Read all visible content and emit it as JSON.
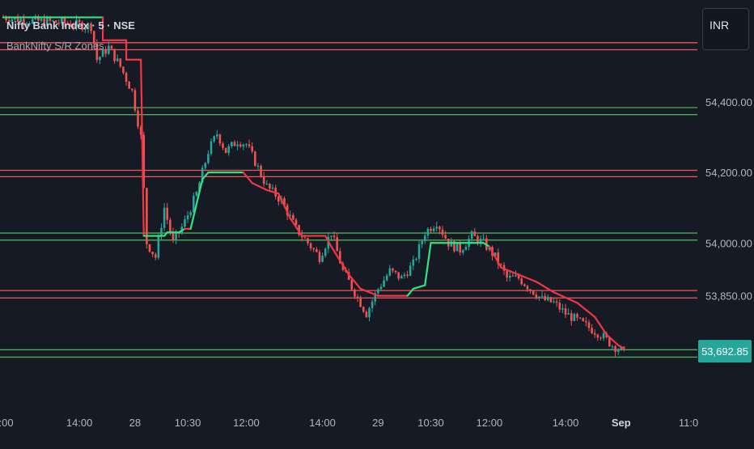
{
  "legend": {
    "symbol_title": "Nifty Bank Index · 5 · NSE",
    "indicator_name": "BankNifty S/R Zones"
  },
  "currency_button": "INR",
  "chart_data": {
    "type": "candlestick",
    "ylim": [
      53560,
      54680
    ],
    "y_ticks": [
      {
        "value": 54400,
        "label": "54,400.00"
      },
      {
        "value": 54200,
        "label": "54,200.00"
      },
      {
        "value": 54000,
        "label": "54,000.00"
      },
      {
        "value": 53850,
        "label": "53,850.00"
      }
    ],
    "x_ticks": [
      {
        "index": 0,
        "label": "2:00"
      },
      {
        "index": 26,
        "label": "14:00"
      },
      {
        "index": 45,
        "label": "28"
      },
      {
        "index": 63,
        "label": "10:30"
      },
      {
        "index": 83,
        "label": "12:00"
      },
      {
        "index": 109,
        "label": "14:00"
      },
      {
        "index": 128,
        "label": "29"
      },
      {
        "index": 146,
        "label": "10:30"
      },
      {
        "index": 166,
        "label": "12:00"
      },
      {
        "index": 192,
        "label": "14:00"
      },
      {
        "index": 211,
        "label": "Sep"
      },
      {
        "index": 234,
        "label": "11:0"
      }
    ],
    "sr_levels": [
      {
        "value": 54568,
        "kind": "resistance"
      },
      {
        "value": 54548,
        "kind": "resistance"
      },
      {
        "value": 54384,
        "kind": "support"
      },
      {
        "value": 54364,
        "kind": "support"
      },
      {
        "value": 54206,
        "kind": "resistance"
      },
      {
        "value": 54188,
        "kind": "resistance"
      },
      {
        "value": 54028,
        "kind": "support"
      },
      {
        "value": 54008,
        "kind": "support"
      },
      {
        "value": 53865,
        "kind": "resistance"
      },
      {
        "value": 53844,
        "kind": "resistance"
      },
      {
        "value": 53697,
        "kind": "support"
      },
      {
        "value": 53676,
        "kind": "support"
      }
    ],
    "last_price": {
      "value": 53692.85,
      "label": "53,692.85"
    },
    "price_path": [
      [
        0,
        54640
      ],
      [
        10,
        54630
      ],
      [
        20,
        54625
      ],
      [
        30,
        54615
      ],
      [
        32,
        54520
      ],
      [
        36,
        54555
      ],
      [
        40,
        54500
      ],
      [
        44,
        54430
      ],
      [
        47,
        54300
      ],
      [
        49,
        54000
      ],
      [
        52,
        53960
      ],
      [
        55,
        54100
      ],
      [
        58,
        54000
      ],
      [
        62,
        54060
      ],
      [
        66,
        54140
      ],
      [
        70,
        54260
      ],
      [
        73,
        54310
      ],
      [
        76,
        54260
      ],
      [
        80,
        54290
      ],
      [
        83,
        54280
      ],
      [
        86,
        54230
      ],
      [
        90,
        54160
      ],
      [
        95,
        54120
      ],
      [
        100,
        54040
      ],
      [
        104,
        54000
      ],
      [
        108,
        53960
      ],
      [
        112,
        54030
      ],
      [
        116,
        53920
      ],
      [
        120,
        53860
      ],
      [
        124,
        53800
      ],
      [
        128,
        53870
      ],
      [
        132,
        53920
      ],
      [
        136,
        53900
      ],
      [
        140,
        53940
      ],
      [
        144,
        54030
      ],
      [
        148,
        54060
      ],
      [
        152,
        54000
      ],
      [
        156,
        53980
      ],
      [
        160,
        54020
      ],
      [
        164,
        54000
      ],
      [
        168,
        53960
      ],
      [
        172,
        53900
      ],
      [
        176,
        53900
      ],
      [
        180,
        53870
      ],
      [
        184,
        53840
      ],
      [
        188,
        53830
      ],
      [
        192,
        53800
      ],
      [
        196,
        53780
      ],
      [
        200,
        53760
      ],
      [
        204,
        53740
      ],
      [
        208,
        53710
      ],
      [
        212,
        53690
      ]
    ],
    "trail_path": [
      [
        0,
        54640
      ],
      [
        34,
        54640
      ],
      [
        34,
        54575
      ],
      [
        42,
        54575
      ],
      [
        42,
        54520
      ],
      [
        47,
        54520
      ],
      [
        48,
        54020
      ],
      [
        55,
        54020
      ],
      [
        56,
        54030
      ],
      [
        60,
        54030
      ],
      [
        62,
        54040
      ],
      [
        64,
        54040
      ],
      [
        68,
        54180
      ],
      [
        70,
        54200
      ],
      [
        82,
        54200
      ],
      [
        85,
        54170
      ],
      [
        90,
        54150
      ],
      [
        94,
        54140
      ],
      [
        98,
        54070
      ],
      [
        102,
        54020
      ],
      [
        110,
        54020
      ],
      [
        112,
        53990
      ],
      [
        118,
        53910
      ],
      [
        122,
        53870
      ],
      [
        128,
        53850
      ],
      [
        138,
        53850
      ],
      [
        140,
        53870
      ],
      [
        144,
        53880
      ],
      [
        146,
        54000
      ],
      [
        164,
        54000
      ],
      [
        166,
        53990
      ],
      [
        170,
        53930
      ],
      [
        176,
        53910
      ],
      [
        182,
        53890
      ],
      [
        188,
        53860
      ],
      [
        196,
        53830
      ],
      [
        202,
        53790
      ],
      [
        206,
        53740
      ],
      [
        210,
        53710
      ],
      [
        212,
        53700
      ]
    ],
    "trail_bullish_segments": [
      [
        0,
        33
      ],
      [
        48,
        62
      ],
      [
        64,
        82
      ],
      [
        138,
        166
      ]
    ],
    "colors": {
      "background": "#161a25",
      "up": "#26a69a",
      "down": "#ef5350",
      "resistance_line": "#f05656",
      "support_line": "#4caf50",
      "trail_bear": "#f23645",
      "trail_bull": "#31e481",
      "axis_text": "#b2b5be",
      "last_price_bg": "#26a69a"
    }
  }
}
